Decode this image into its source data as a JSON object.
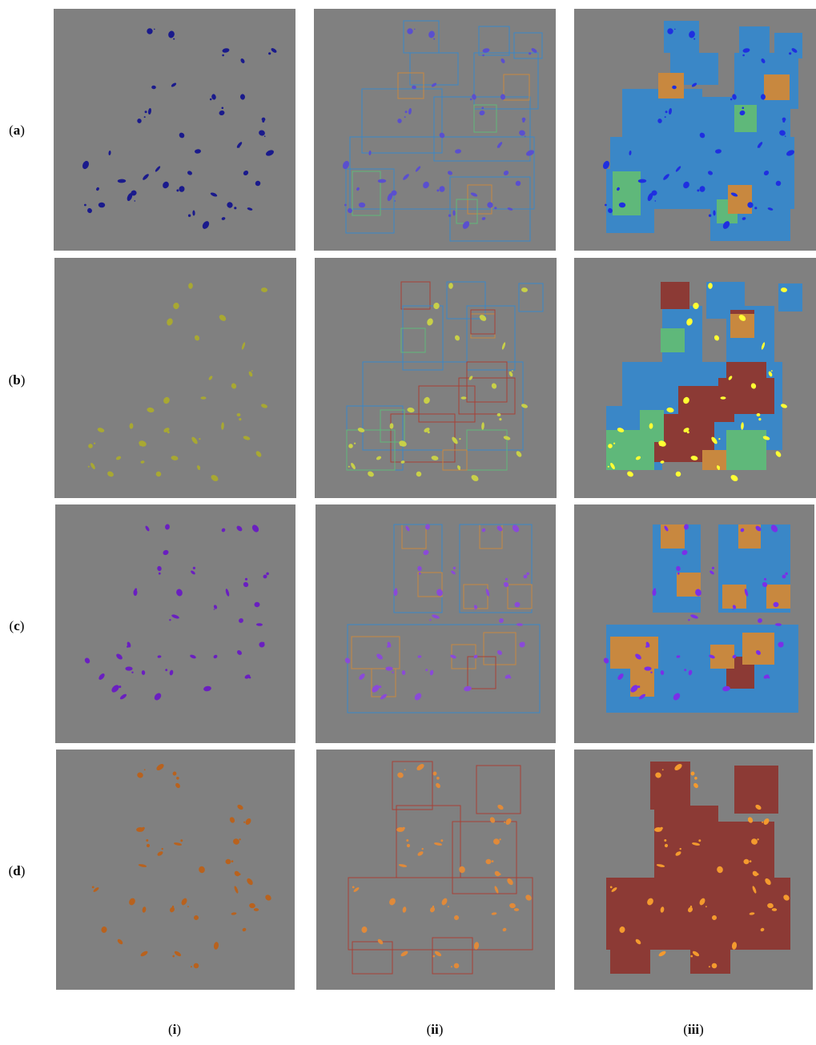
{
  "row_labels": [
    {
      "open": "(",
      "letter": "a",
      "close": ")"
    },
    {
      "open": "(",
      "letter": "b",
      "close": ")"
    },
    {
      "open": "(",
      "letter": "c",
      "close": ")"
    },
    {
      "open": "(",
      "letter": "d",
      "close": ")"
    }
  ],
  "column_labels": [
    {
      "open": "(",
      "numeral": "i",
      "close": ")"
    },
    {
      "open": "(",
      "numeral": "ii",
      "close": ")"
    },
    {
      "open": "(",
      "numeral": "iii",
      "close": ")"
    }
  ],
  "colors": {
    "background": "#808080",
    "patch_blue": "#3a87c7",
    "patch_orange": "#c8883f",
    "patch_green": "#5fb87a",
    "patch_red": "#8c3a35",
    "outline_blue": "#3a87c7",
    "outline_orange": "#c8883f",
    "outline_green": "#5fb87a",
    "outline_red": "#a84036",
    "lesion_a": "#1a1a8c",
    "lesion_a_overlay": "#5a4fcf",
    "lesion_a_panel3": "#1f2fe0",
    "lesion_b": "#a8a832",
    "lesion_b_overlay": "#c8d048",
    "lesion_b_panel3": "#ffff33",
    "lesion_c": "#6a1fc0",
    "lesion_c_overlay": "#8a4ad8",
    "lesion_c_panel3": "#7a2fe8",
    "lesion_d": "#b8621e",
    "lesion_d_overlay": "#e08a3a",
    "lesion_d_panel3": "#f49a2e"
  }
}
